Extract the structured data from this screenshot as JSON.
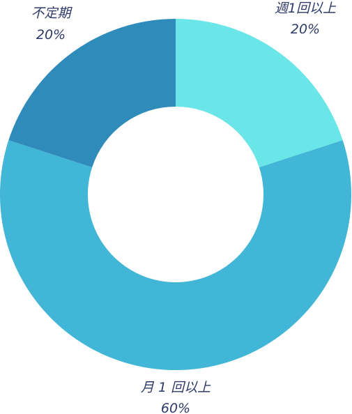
{
  "chart_data": {
    "type": "pie",
    "title": "",
    "slices": [
      {
        "label": "週1回以上",
        "value": 20,
        "value_label": "20%",
        "color": "#6ae6e8"
      },
      {
        "label": "月 1 回以上",
        "value": 60,
        "value_label": "60%",
        "color": "#41b6d6"
      },
      {
        "label": "不定期",
        "value": 20,
        "value_label": "20%",
        "color": "#2e8bba"
      }
    ],
    "donut": true,
    "start": "12 o'clock",
    "direction": "clockwise",
    "legend": "none"
  }
}
